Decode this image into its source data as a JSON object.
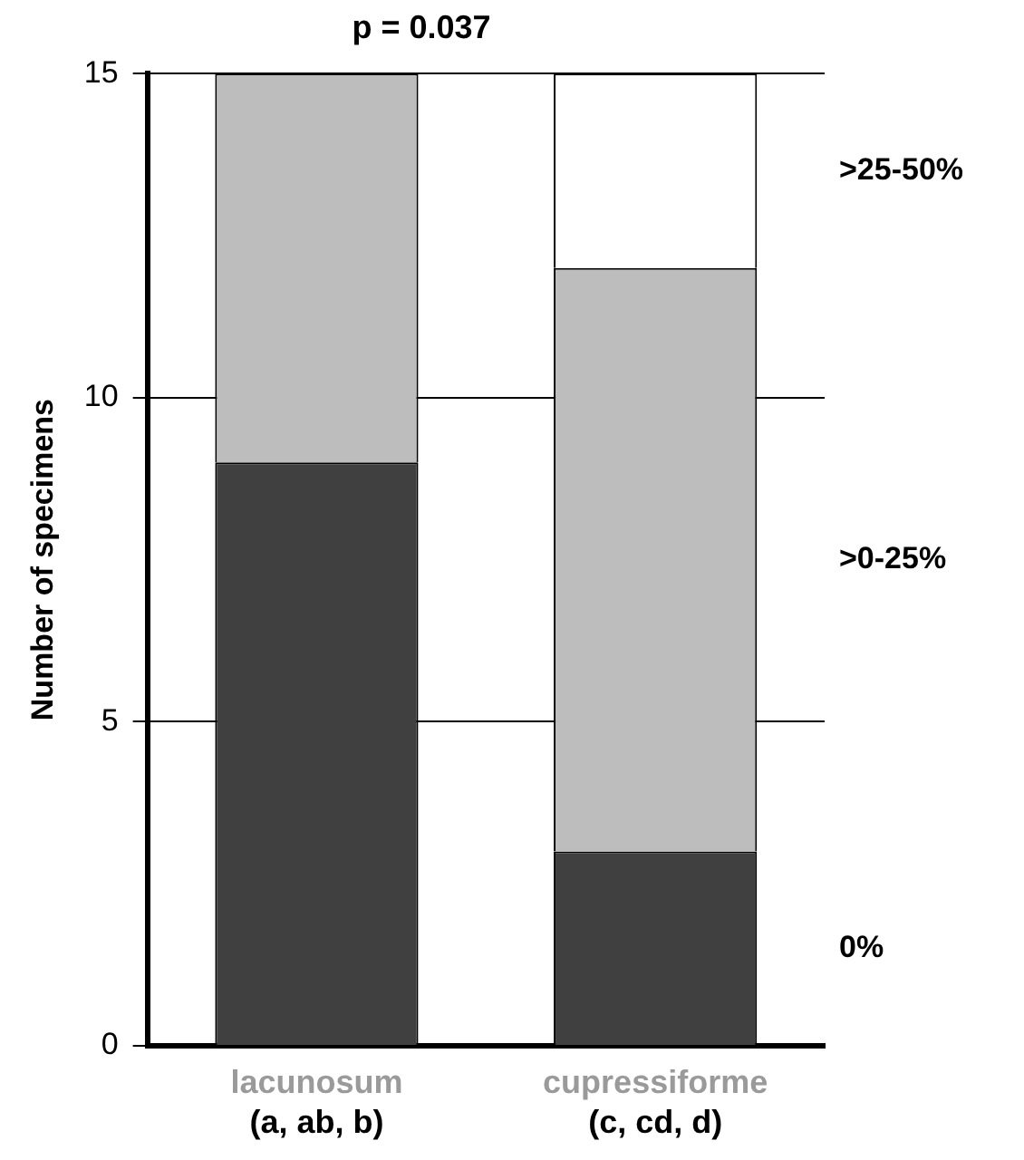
{
  "chart_data": {
    "type": "bar",
    "title": "p = 0.037",
    "ylabel": "Number of specimens",
    "categories": [
      "lacunosum\n(a, ab, b)",
      "cupressiforme\n(c, cd, d)"
    ],
    "stacked": true,
    "series": [
      {
        "name": "0%",
        "color": "#404040",
        "values": [
          9,
          3
        ]
      },
      {
        "name": ">0-25%",
        "color": "#bdbdbd",
        "values": [
          6,
          9
        ]
      },
      {
        "name": ">25-50%",
        "color": "#ffffff",
        "values": [
          0,
          3
        ]
      }
    ],
    "ylim": [
      0,
      15
    ],
    "yticks": [
      0,
      5,
      10,
      15
    ],
    "grid": "y",
    "legend": false
  }
}
